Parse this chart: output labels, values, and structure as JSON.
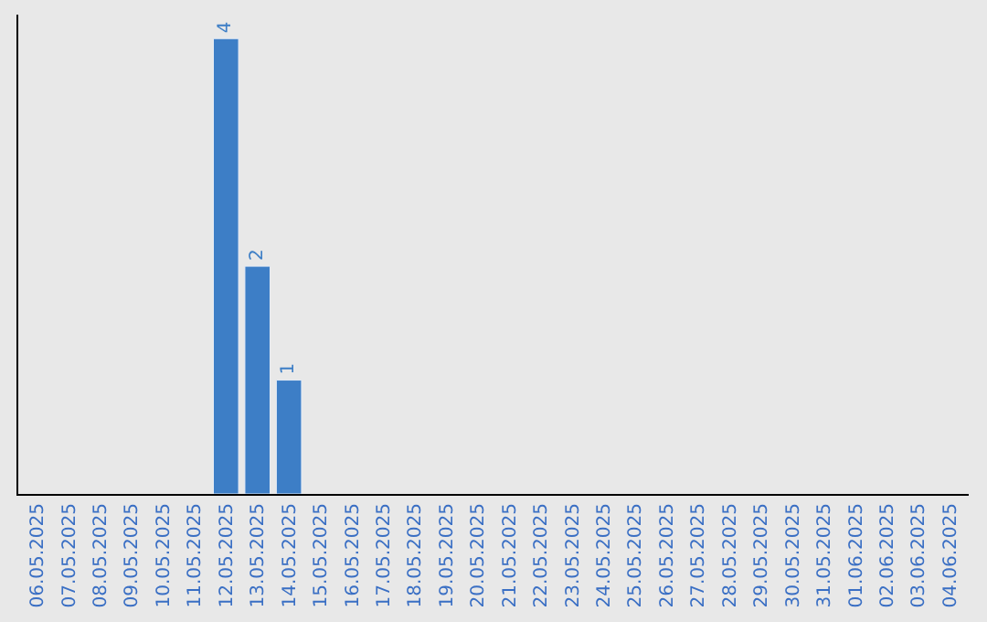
{
  "chart_data": {
    "type": "bar",
    "categories": [
      "06.05.2025",
      "07.05.2025",
      "08.05.2025",
      "09.05.2025",
      "10.05.2025",
      "11.05.2025",
      "12.05.2025",
      "13.05.2025",
      "14.05.2025",
      "15.05.2025",
      "16.05.2025",
      "17.05.2025",
      "18.05.2025",
      "19.05.2025",
      "20.05.2025",
      "21.05.2025",
      "22.05.2025",
      "23.05.2025",
      "24.05.2025",
      "25.05.2025",
      "26.05.2025",
      "27.05.2025",
      "28.05.2025",
      "29.05.2025",
      "30.05.2025",
      "31.05.2025",
      "01.06.2025",
      "02.06.2025",
      "03.06.2025",
      "04.06.2025"
    ],
    "values": [
      null,
      null,
      null,
      null,
      null,
      null,
      4,
      2,
      1,
      null,
      null,
      null,
      null,
      null,
      null,
      null,
      null,
      null,
      null,
      null,
      null,
      null,
      null,
      null,
      null,
      null,
      null,
      null,
      null,
      null
    ],
    "value_labels": [
      null,
      null,
      null,
      null,
      null,
      null,
      "4",
      "2",
      "1",
      null,
      null,
      null,
      null,
      null,
      null,
      null,
      null,
      null,
      null,
      null,
      null,
      null,
      null,
      null,
      null,
      null,
      null,
      null,
      null,
      null
    ],
    "color": "#3d7ec6",
    "tick_labels": "x",
    "grid": false,
    "legend": false
  }
}
